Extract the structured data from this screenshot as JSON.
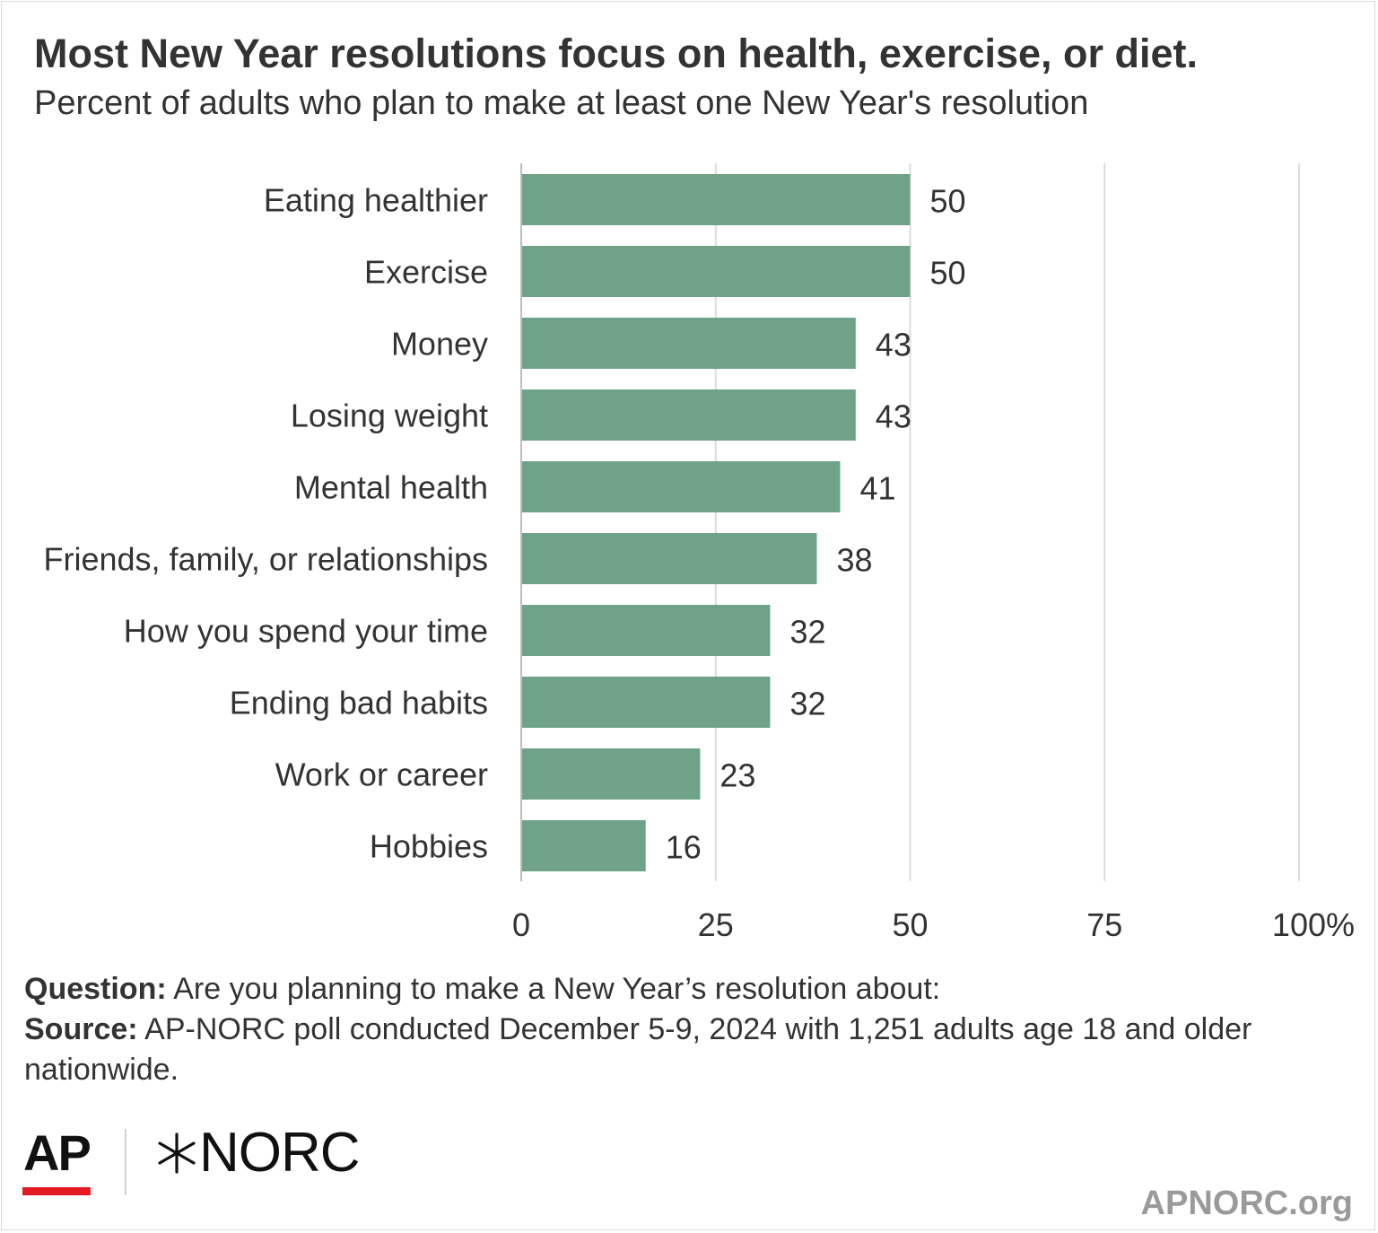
{
  "title": "Most New Year resolutions focus on health, exercise, or diet.",
  "subtitle": "Percent of adults who plan to make at least one New Year's resolution",
  "chart_data": {
    "type": "bar",
    "orientation": "horizontal",
    "categories": [
      "Eating healthier",
      "Exercise",
      "Money",
      "Losing weight",
      "Mental health",
      "Friends, family, or relationships",
      "How you spend your time",
      "Ending bad habits",
      "Work or career",
      "Hobbies"
    ],
    "values": [
      50,
      50,
      43,
      43,
      41,
      38,
      32,
      32,
      23,
      16
    ],
    "xlim": [
      0,
      100
    ],
    "ticks": [
      "0",
      "25",
      "50",
      "75",
      "100%"
    ],
    "grid": true,
    "bar_color": "#6fa287"
  },
  "notes": {
    "question_label": "Question:",
    "question_text": " Are you planning to make a New Year’s resolution about:",
    "source_label": "Source:",
    "source_text": " AP-NORC poll conducted December 5-9, 2024 with 1,251 adults age 18 and older nationwide."
  },
  "logos": {
    "ap": "AP",
    "norc": "NORC",
    "ap_accent_color": "#e31b23"
  },
  "site": "APNORC.org"
}
